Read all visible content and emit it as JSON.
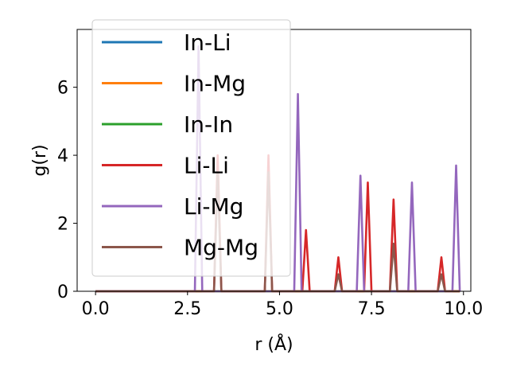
{
  "chart_data": {
    "type": "line",
    "title": "",
    "xlabel": "r (Å)",
    "ylabel": "g(r)",
    "xlim": [
      -0.5,
      10.2
    ],
    "ylim": [
      0,
      7.7
    ],
    "xticks": [
      0.0,
      2.5,
      5.0,
      7.5,
      10.0
    ],
    "xtick_labels": [
      "0.0",
      "2.5",
      "5.0",
      "7.5",
      "10.0"
    ],
    "yticks": [
      0,
      2,
      4,
      6
    ],
    "ytick_labels": [
      "0",
      "2",
      "4",
      "6"
    ],
    "grid": false,
    "legend_position": "upper-left",
    "series": [
      {
        "name": "In-Li",
        "color": "#1f77b4",
        "peaks": []
      },
      {
        "name": "In-Mg",
        "color": "#ff7f0e",
        "peaks": []
      },
      {
        "name": "In-In",
        "color": "#2ca02c",
        "peaks": []
      },
      {
        "name": "Li-Li",
        "color": "#d62728",
        "peaks": [
          {
            "r": 3.32,
            "g": 4.0
          },
          {
            "r": 4.7,
            "g": 4.0
          },
          {
            "r": 5.72,
            "g": 1.8
          },
          {
            "r": 6.6,
            "g": 1.0
          },
          {
            "r": 7.4,
            "g": 3.2
          },
          {
            "r": 8.1,
            "g": 2.7
          },
          {
            "r": 9.4,
            "g": 1.0
          }
        ]
      },
      {
        "name": "Li-Mg",
        "color": "#9467bd",
        "peaks": [
          {
            "r": 2.8,
            "g": 7.2
          },
          {
            "r": 5.5,
            "g": 5.8
          },
          {
            "r": 7.2,
            "g": 3.4
          },
          {
            "r": 8.6,
            "g": 3.2
          },
          {
            "r": 9.8,
            "g": 3.7
          }
        ]
      },
      {
        "name": "Mg-Mg",
        "color": "#8c564b",
        "peaks": [
          {
            "r": 3.32,
            "g": 3.5
          },
          {
            "r": 4.7,
            "g": 3.5
          },
          {
            "r": 6.6,
            "g": 0.5
          },
          {
            "r": 8.1,
            "g": 1.4
          },
          {
            "r": 9.4,
            "g": 0.5
          }
        ]
      }
    ]
  }
}
